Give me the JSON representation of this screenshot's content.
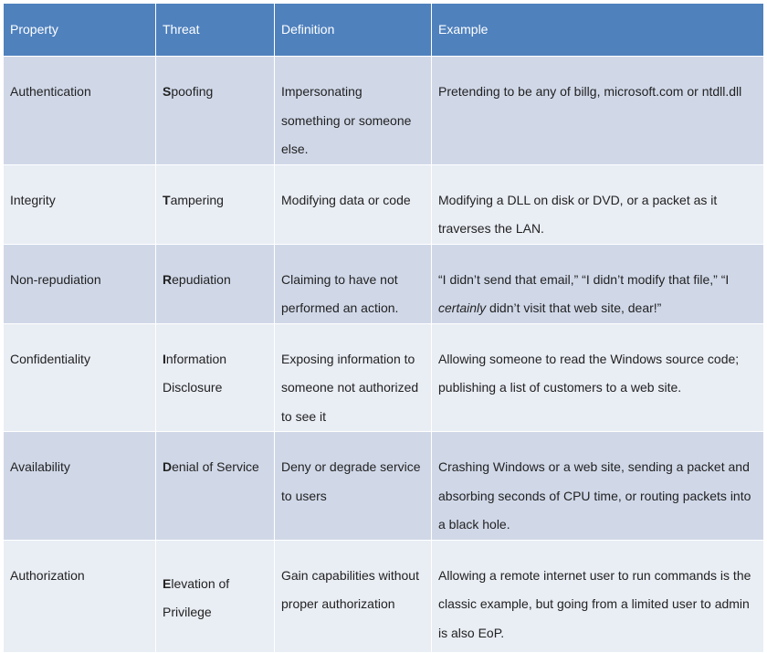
{
  "headers": [
    "Property",
    "Threat",
    "Definition",
    "Example"
  ],
  "rows": [
    {
      "property": "Authentication",
      "threat_first": "S",
      "threat_rest": "poofing",
      "definition": "Impersonating something or someone else.",
      "example": "Pretending to be any of billg, microsoft.com or ntdll.dll"
    },
    {
      "property": "Integrity",
      "threat_first": "T",
      "threat_rest": "ampering",
      "definition": "Modifying data or code",
      "example": "Modifying a DLL on disk or DVD, or a packet as it traverses the LAN."
    },
    {
      "property": "Non-repudiation",
      "threat_first": "R",
      "threat_rest": "epudiation",
      "definition": "Claiming to have not performed an action.",
      "example_pre": "“I didn’t send that email,” “I didn’t modify that file,” “I ",
      "example_em": "certainly",
      "example_post": " didn’t visit that web site, dear!”"
    },
    {
      "property": "Confidentiality",
      "threat_first": "I",
      "threat_rest": "nformation Disclosure",
      "definition": "Exposing information to someone not authorized to see it",
      "example": "Allowing someone to read the Windows source code; publishing a list of customers to a web site."
    },
    {
      "property": "Availability",
      "threat_first": "D",
      "threat_rest": "enial of Service",
      "definition": "Deny or degrade service to users",
      "example": "Crashing Windows or a web site, sending a packet and absorbing seconds of CPU time, or routing packets into a black hole."
    },
    {
      "property": "Authorization",
      "threat_first": "E",
      "threat_rest": "levation of Privilege",
      "definition": "Gain capabilities without proper authorization",
      "example": "Allowing a remote internet user to run commands is the classic example, but going from a limited user to admin is also EoP."
    }
  ]
}
